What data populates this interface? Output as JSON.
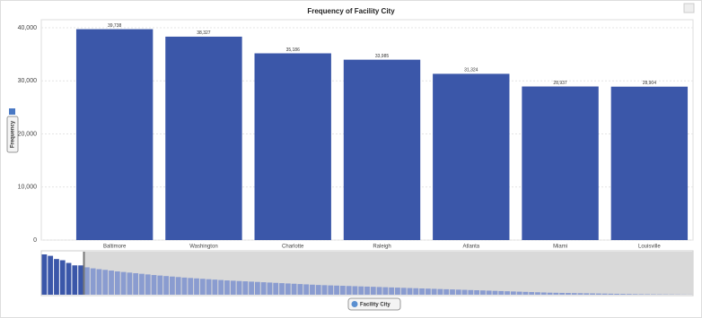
{
  "chart_data": {
    "type": "bar",
    "title": "Frequency of Facility City",
    "x_label": "Facility City",
    "y_label": "Frequency",
    "categories": [
      "Baltimore",
      "Washington",
      "Charlotte",
      "Raleigh",
      "Atlanta",
      "Miami",
      "Louisville"
    ],
    "values": [
      39738,
      38327,
      35186,
      33985,
      31324,
      28937,
      28904
    ],
    "value_labels": [
      "39,738",
      "38,327",
      "35,186",
      "33,985",
      "31,324",
      "28,937",
      "28,904"
    ],
    "color": "#3b57a9",
    "ylim": [
      0,
      40000
    ],
    "yticks": [
      0,
      {
        "value": 10000,
        "label": "10,000"
      },
      {
        "value": 20000,
        "label": "20,000"
      },
      {
        "value": 30000,
        "label": "30,000"
      },
      {
        "value": 40000,
        "label": "40,000"
      }
    ],
    "grid": true,
    "overview": {
      "color": "#8a9cd0",
      "values": [
        39738,
        38327,
        35186,
        33985,
        31324,
        28937,
        28904,
        27000,
        26000,
        25200,
        24500,
        23800,
        23000,
        22400,
        21800,
        21200,
        20600,
        20000,
        19400,
        18900,
        18400,
        17900,
        17400,
        16900,
        16500,
        16100,
        15700,
        15300,
        14900,
        14500,
        14100,
        13800,
        13500,
        13200,
        12900,
        12600,
        12300,
        12000,
        11700,
        11400,
        11100,
        10800,
        10500,
        10200,
        9900,
        9600,
        9400,
        9200,
        9000,
        8800,
        8600,
        8400,
        8200,
        8000,
        7800,
        7600,
        7400,
        7200,
        7000,
        6800,
        6600,
        6400,
        6200,
        6000,
        5800,
        5600,
        5400,
        5200,
        5000,
        4800,
        4600,
        4400,
        4200,
        4000,
        3800,
        3600,
        3400,
        3200,
        3000,
        2800,
        2600,
        2400,
        2200,
        2000,
        1900,
        1800,
        1700,
        1600,
        1500,
        1400,
        1300,
        1200,
        1100,
        1000,
        900,
        800,
        700,
        600,
        500,
        450,
        400,
        350,
        300,
        250,
        200,
        150,
        100
      ]
    }
  }
}
